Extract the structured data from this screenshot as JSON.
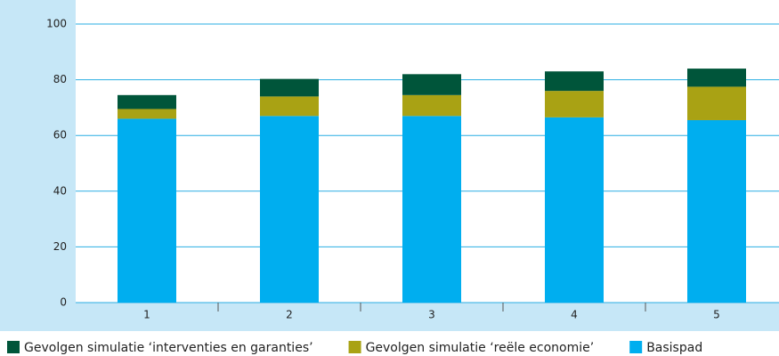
{
  "chart_data": {
    "type": "stacked_bar",
    "categories": [
      "1",
      "2",
      "3",
      "4",
      "5"
    ],
    "series": [
      {
        "name": "Gevolgen simulatie ‘interventies en garanties’",
        "color": "#00553a",
        "values": [
          5,
          6.3,
          7.5,
          7,
          6.5
        ]
      },
      {
        "name": "Gevolgen simulatie ‘reële economie’",
        "color": "#a9a214",
        "values": [
          3.5,
          7,
          7.5,
          9.5,
          12
        ]
      },
      {
        "name": "Basispad",
        "color": "#00aeef",
        "values": [
          66,
          67,
          67,
          66.5,
          65.5
        ]
      }
    ],
    "ylim": [
      0,
      100
    ],
    "yticks": [
      0,
      20,
      40,
      60,
      80,
      100
    ],
    "grid": true
  }
}
